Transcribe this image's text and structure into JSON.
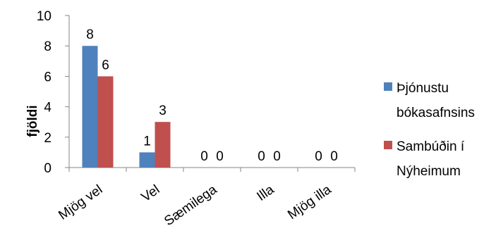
{
  "chart_data": {
    "type": "bar",
    "title": "",
    "xlabel": "",
    "ylabel": "fjöldi",
    "ylim": [
      0,
      10
    ],
    "yticks": [
      0,
      2,
      4,
      6,
      8,
      10
    ],
    "grid": false,
    "legend_position": "right",
    "categories": [
      "Mjög vel",
      "Vel",
      "Sæmilega",
      "Illa",
      "Mjög illa"
    ],
    "series": [
      {
        "name": "Þjónustu bókasafnsins",
        "name_lines": [
          "Þjónustu",
          "bókasafnsins"
        ],
        "color": "#4f81bd",
        "values": [
          8,
          1,
          0,
          0,
          0
        ]
      },
      {
        "name": "Sambúðin í Nýheimum",
        "name_lines": [
          "Sambúðin í",
          "Nýheimum"
        ],
        "color": "#c0504d",
        "values": [
          6,
          3,
          0,
          0,
          0
        ]
      }
    ]
  },
  "colors": {
    "axis": "#868686",
    "text": "#000000"
  }
}
